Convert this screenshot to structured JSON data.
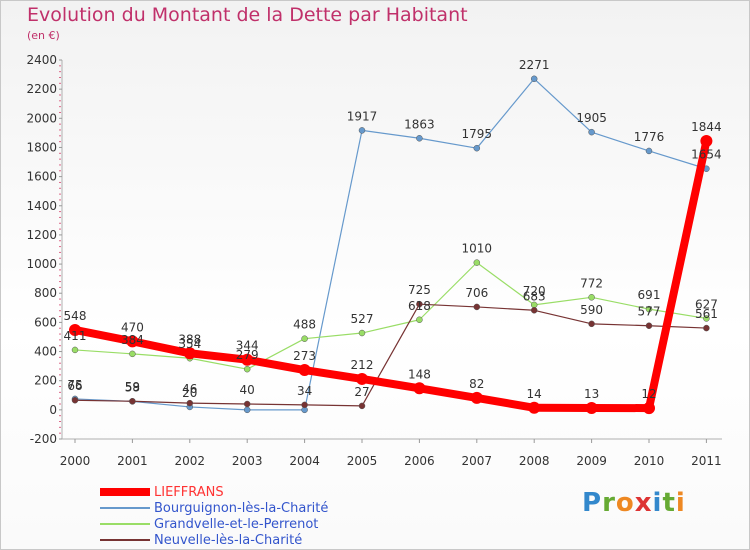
{
  "header": {
    "title": "Evolution du Montant de la Dette par Habitant",
    "subtitle": "(en €)"
  },
  "logo": {
    "text": "Proxiti"
  },
  "chart_data": {
    "type": "line",
    "x": [
      "2000",
      "2001",
      "2002",
      "2003",
      "2004",
      "2005",
      "2006",
      "2007",
      "2008",
      "2009",
      "2010",
      "2011"
    ],
    "ylim": [
      -200,
      2400
    ],
    "yticks": [
      -200,
      0,
      200,
      400,
      600,
      800,
      1000,
      1200,
      1400,
      1600,
      1800,
      2000,
      2200,
      2400
    ],
    "grid": false,
    "legend_position": "bottom-left",
    "series": [
      {
        "name": "LIEFFRANS",
        "color": "#ff0000",
        "labelColor": "#ff0000",
        "width": 8,
        "markerRadius": 6,
        "values": [
          548,
          470,
          388,
          344,
          273,
          212,
          148,
          82,
          14,
          13,
          12,
          1844
        ]
      },
      {
        "name": "Bourguignon-lès-la-Charité",
        "color": "#6699cc",
        "labelColor": "#5577cc",
        "width": 1.2,
        "markerRadius": 3,
        "values": [
          75,
          58,
          20,
          0,
          0,
          1917,
          1863,
          1795,
          2271,
          1905,
          1776,
          1654
        ]
      },
      {
        "name": "Grandvelle-et-le-Perrenot",
        "color": "#99dd66",
        "labelColor": "#66bb44",
        "width": 1.2,
        "markerRadius": 3,
        "values": [
          411,
          384,
          354,
          279,
          488,
          527,
          618,
          1010,
          720,
          772,
          691,
          627
        ]
      },
      {
        "name": "Neuvelle-lès-la-Charité",
        "color": "#773333",
        "labelColor": "#773333",
        "width": 1.2,
        "markerRadius": 3,
        "values": [
          66,
          59,
          46,
          40,
          34,
          27,
          725,
          706,
          683,
          590,
          577,
          561
        ]
      }
    ],
    "point_labels": [
      {
        "series": 0,
        "text": [
          "548",
          "470",
          "388",
          "344",
          "273",
          "212",
          "148",
          "82",
          "14",
          "13",
          "12",
          "1844"
        ]
      },
      {
        "series": 1,
        "text": [
          "75",
          "58",
          "20",
          "",
          "",
          "1917",
          "1863",
          "1795",
          "2271",
          "1905",
          "1776",
          "1654"
        ]
      },
      {
        "series": 2,
        "text": [
          "411",
          "384",
          "354",
          "279",
          "488",
          "527",
          "618",
          "1010",
          "720",
          "772",
          "691",
          "627"
        ]
      },
      {
        "series": 3,
        "text": [
          "66",
          "59",
          "46",
          "40",
          "34",
          "27",
          "725",
          "706",
          "683",
          "590",
          "577",
          "561"
        ]
      }
    ]
  }
}
